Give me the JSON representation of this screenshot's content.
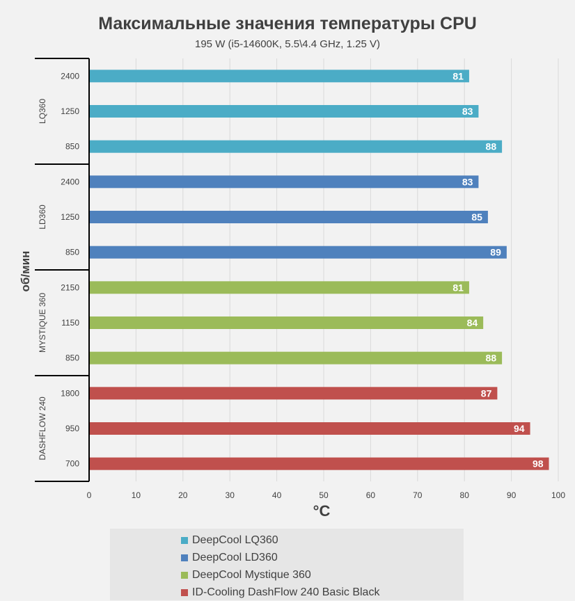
{
  "chart_data": {
    "type": "bar",
    "orientation": "horizontal",
    "title": "Максимальные значения температуры CPU",
    "subtitle": "195 W (i5-14600K, 5.5\\4.4 GHz, 1.25 V)",
    "xlabel": "°C",
    "ylabel": "об/мин",
    "xlim": [
      0,
      100
    ],
    "xticks": [
      "0",
      "10",
      "20",
      "30",
      "40",
      "50",
      "60",
      "70",
      "80",
      "90",
      "100"
    ],
    "grid": true,
    "legend_position": "bottom",
    "groups": [
      {
        "label": "LQ360",
        "series": "DeepCool LQ360",
        "color": "#4bacc6",
        "categories": [
          "2400",
          "1250",
          "850"
        ],
        "values": [
          81,
          83,
          88
        ]
      },
      {
        "label": "LD360",
        "series": "DeepCool LD360",
        "color": "#4f81bd",
        "categories": [
          "2400",
          "1250",
          "850"
        ],
        "values": [
          83,
          85,
          89
        ]
      },
      {
        "label": "MYSTIQUE 360",
        "series": "DeepCool Mystique 360",
        "color": "#9bbb59",
        "categories": [
          "2150",
          "1150",
          "850"
        ],
        "values": [
          81,
          84,
          88
        ]
      },
      {
        "label": "DASHFLOW 240",
        "series": "ID-Cooling DashFlow 240 Basic Black",
        "color": "#c0504d",
        "categories": [
          "1800",
          "950",
          "700"
        ],
        "values": [
          87,
          94,
          98
        ]
      }
    ],
    "series": [
      {
        "name": "DeepCool LQ360",
        "color": "#4bacc6"
      },
      {
        "name": "DeepCool LD360",
        "color": "#4f81bd"
      },
      {
        "name": "DeepCool Mystique 360",
        "color": "#9bbb59"
      },
      {
        "name": "ID-Cooling DashFlow 240 Basic Black",
        "color": "#c0504d"
      }
    ]
  }
}
